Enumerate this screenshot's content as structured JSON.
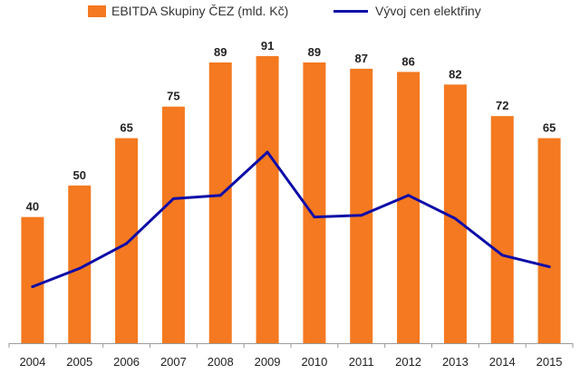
{
  "chart_data": {
    "type": "bar",
    "categories": [
      "2004",
      "2005",
      "2006",
      "2007",
      "2008",
      "2009",
      "2010",
      "2011",
      "2012",
      "2013",
      "2014",
      "2015"
    ],
    "series": [
      {
        "name": "EBITDA Skupiny ČEZ (mld. Kč)",
        "kind": "bar",
        "color": "#f47920",
        "values": [
          40,
          50,
          65,
          75,
          89,
          91,
          89,
          87,
          86,
          82,
          72,
          65
        ],
        "data_labels": true
      },
      {
        "name": "Vývoj cen elektřiny",
        "kind": "line",
        "color": "#0c0ca8",
        "values": [
          34,
          45,
          60,
          87,
          89,
          115,
          76,
          77,
          89,
          75,
          53,
          46
        ]
      }
    ],
    "title": "",
    "xlabel": "",
    "ylabel": "",
    "ylim": [
      0,
      91
    ],
    "line_ylim": [
      0,
      115
    ],
    "grid": false,
    "legend_position": "top"
  },
  "legend": {
    "bar_label": "EBITDA Skupiny ČEZ (mld. Kč)",
    "line_label": "Vývoj cen elektřiny"
  }
}
